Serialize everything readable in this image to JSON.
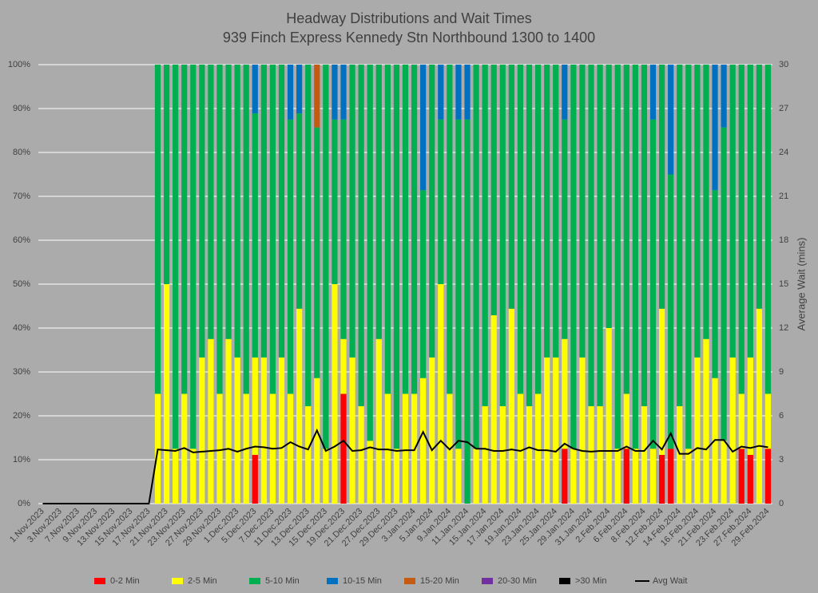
{
  "chart_data": {
    "type": "bar",
    "title": "Headway Distributions and Wait Times",
    "subtitle": "939 Finch Express  Kennedy Stn Northbound 1300 to 1400",
    "y2_label": "Average Wait (mins)",
    "stacked": true,
    "grid": true,
    "legend": "bottom",
    "categories": [
      "1.Nov.2023",
      null,
      "3.Nov.2023",
      null,
      "7.Nov.2023",
      null,
      "9.Nov.2023",
      null,
      "13.Nov.2023",
      null,
      "15.Nov.2023",
      null,
      "17.Nov.2023",
      null,
      "21.Nov.2023",
      null,
      "23.Nov.2023",
      null,
      "27.Nov.2023",
      null,
      "29.Nov.2023",
      null,
      "1.Dec.2023",
      null,
      "5.Dec.2023",
      null,
      "7.Dec.2023",
      null,
      "11.Dec.2023",
      null,
      "13.Dec.2023",
      null,
      "15.Dec.2023",
      null,
      "19.Dec.2023",
      null,
      "21.Dec.2023",
      null,
      "27.Dec.2023",
      null,
      "29.Dec.2023",
      null,
      "3.Jan.2024",
      null,
      "5.Jan.2024",
      null,
      "9.Jan.2024",
      null,
      "11.Jan.2024",
      null,
      "15.Jan.2024",
      null,
      "17.Jan.2024",
      null,
      "19.Jan.2024",
      null,
      "23.Jan.2024",
      null,
      "25.Jan.2024",
      null,
      "29.Jan.2024",
      null,
      "31.Jan.2024",
      null,
      "2.Feb.2024",
      null,
      "6.Feb.2024",
      null,
      "8.Feb.2024",
      null,
      "12.Feb.2024",
      null,
      "14.Feb.2024",
      null,
      "16.Feb.2024",
      null,
      "21.Feb.2024",
      null,
      "23.Feb.2024",
      null,
      "27.Feb.2024",
      null,
      "29.Feb.2024"
    ],
    "ylim": [
      0,
      100
    ],
    "yticks": [
      {
        "value": 0,
        "label": "0%"
      },
      {
        "value": 10,
        "label": "10%"
      },
      {
        "value": 20,
        "label": "20%"
      },
      {
        "value": 30,
        "label": "30%"
      },
      {
        "value": 40,
        "label": "40%"
      },
      {
        "value": 50,
        "label": "50%"
      },
      {
        "value": 60,
        "label": "60%"
      },
      {
        "value": 70,
        "label": "70%"
      },
      {
        "value": 80,
        "label": "80%"
      },
      {
        "value": 90,
        "label": "90%"
      },
      {
        "value": 100,
        "label": "100%"
      }
    ],
    "y2lim": [
      0,
      30
    ],
    "y2ticks": [
      0,
      3,
      6,
      9,
      12,
      15,
      18,
      21,
      24,
      27,
      30
    ],
    "series": [
      {
        "name": "0-2 Min",
        "color": "#ff0000",
        "values": [
          null,
          null,
          null,
          null,
          null,
          null,
          null,
          null,
          null,
          null,
          null,
          null,
          null,
          0,
          0,
          0,
          0,
          0,
          0,
          0,
          0,
          0,
          0,
          0,
          11.1,
          0,
          0,
          0,
          0,
          0,
          0,
          0,
          0,
          0,
          25,
          0,
          0,
          0,
          0,
          0,
          0,
          0,
          0,
          0,
          0,
          0,
          0,
          0,
          0,
          0,
          0,
          0,
          0,
          0,
          0,
          0,
          0,
          0,
          0,
          12.5,
          0,
          0,
          0,
          0,
          0,
          0,
          12.5,
          0,
          0,
          0,
          11.1,
          12.5,
          0,
          0,
          0,
          0,
          0,
          0,
          0,
          12.5,
          11.1,
          0,
          12.5
        ]
      },
      {
        "name": "2-5 Min",
        "color": "#ffff00",
        "values": [
          null,
          null,
          null,
          null,
          null,
          null,
          null,
          null,
          null,
          null,
          null,
          null,
          null,
          25,
          50,
          12.5,
          25,
          12.5,
          33.3,
          37.5,
          25,
          37.5,
          33.3,
          25,
          22.2,
          33.3,
          25,
          33.3,
          25,
          44.4,
          22.2,
          28.6,
          12.5,
          50,
          12.5,
          33.3,
          22.2,
          14.3,
          37.5,
          25,
          12.5,
          25,
          25,
          28.6,
          33.3,
          50,
          25,
          12.5,
          0,
          12.5,
          22.2,
          42.9,
          22.2,
          44.4,
          25,
          22.2,
          25,
          33.3,
          33.3,
          25,
          12.5,
          33.3,
          22.2,
          22.2,
          40,
          12.5,
          12.5,
          12.5,
          22.2,
          12.5,
          33.3,
          0,
          22.2,
          12.5,
          33.3,
          37.5,
          28.6,
          14.3,
          33.3,
          12.5,
          22.2,
          44.4,
          12.5
        ]
      },
      {
        "name": "5-10 Min",
        "color": "#00b050",
        "values": [
          null,
          null,
          null,
          null,
          null,
          null,
          null,
          null,
          null,
          null,
          null,
          null,
          null,
          75,
          50,
          87.5,
          75,
          87.5,
          66.7,
          62.5,
          75,
          62.5,
          66.7,
          75,
          55.6,
          66.7,
          75,
          66.7,
          62.5,
          44.5,
          77.8,
          57.1,
          87.5,
          37.5,
          50,
          66.7,
          77.8,
          85.7,
          62.5,
          75,
          87.5,
          75,
          75,
          42.8,
          66.7,
          37.5,
          75,
          75,
          87.5,
          87.5,
          77.8,
          57.1,
          77.8,
          55.6,
          75,
          77.8,
          75,
          66.7,
          66.7,
          50,
          87.5,
          66.7,
          77.8,
          77.8,
          60,
          87.5,
          75,
          87.5,
          77.8,
          75,
          55.6,
          62.5,
          77.8,
          87.5,
          66.7,
          62.5,
          42.8,
          71.4,
          66.7,
          75,
          66.7,
          55.6,
          75
        ]
      },
      {
        "name": "10-15 Min",
        "color": "#0070c0",
        "values": [
          null,
          null,
          null,
          null,
          null,
          null,
          null,
          null,
          null,
          null,
          null,
          null,
          null,
          0,
          0,
          0,
          0,
          0,
          0,
          0,
          0,
          0,
          0,
          0,
          11.1,
          0,
          0,
          0,
          12.5,
          11.1,
          0,
          0,
          0,
          12.5,
          12.5,
          0,
          0,
          0,
          0,
          0,
          0,
          0,
          0,
          28.6,
          0,
          12.5,
          0,
          12.5,
          12.5,
          0,
          0,
          0,
          0,
          0,
          0,
          0,
          0,
          0,
          0,
          12.5,
          0,
          0,
          0,
          0,
          0,
          0,
          0,
          0,
          0,
          12.5,
          0,
          25,
          0,
          0,
          0,
          0,
          28.6,
          14.3,
          0,
          0,
          0,
          0,
          0
        ]
      },
      {
        "name": "15-20 Min",
        "color": "#c55a11",
        "values": [
          null,
          null,
          null,
          null,
          null,
          null,
          null,
          null,
          null,
          null,
          null,
          null,
          null,
          0,
          0,
          0,
          0,
          0,
          0,
          0,
          0,
          0,
          0,
          0,
          0,
          0,
          0,
          0,
          0,
          0,
          0,
          14.3,
          0,
          0,
          0,
          0,
          0,
          0,
          0,
          0,
          0,
          0,
          0,
          0,
          0,
          0,
          0,
          0,
          0,
          0,
          0,
          0,
          0,
          0,
          0,
          0,
          0,
          0,
          0,
          0,
          0,
          0,
          0,
          0,
          0,
          0,
          0,
          0,
          0,
          0,
          0,
          0,
          0,
          0,
          0,
          0,
          0,
          0,
          0,
          0,
          0,
          0,
          0
        ]
      },
      {
        "name": "20-30 Min",
        "color": "#7030a0",
        "values": [
          null,
          null,
          null,
          null,
          null,
          null,
          null,
          null,
          null,
          null,
          null,
          null,
          null,
          0,
          0,
          0,
          0,
          0,
          0,
          0,
          0,
          0,
          0,
          0,
          0,
          0,
          0,
          0,
          0,
          0,
          0,
          0,
          0,
          0,
          0,
          0,
          0,
          0,
          0,
          0,
          0,
          0,
          0,
          0,
          0,
          0,
          0,
          0,
          0,
          0,
          0,
          0,
          0,
          0,
          0,
          0,
          0,
          0,
          0,
          0,
          0,
          0,
          0,
          0,
          0,
          0,
          0,
          0,
          0,
          0,
          0,
          0,
          0,
          0,
          0,
          0,
          0,
          0,
          0,
          0,
          0,
          0,
          0
        ]
      },
      {
        "name": ">30 Min",
        "color": "#000000",
        "values": [
          null,
          null,
          null,
          null,
          null,
          null,
          null,
          null,
          null,
          null,
          null,
          null,
          null,
          0,
          0,
          0,
          0,
          0,
          0,
          0,
          0,
          0,
          0,
          0,
          0,
          0,
          0,
          0,
          0,
          0,
          0,
          0,
          0,
          0,
          0,
          0,
          0,
          0,
          0,
          0,
          0,
          0,
          0,
          0,
          0,
          0,
          0,
          0,
          0,
          0,
          0,
          0,
          0,
          0,
          0,
          0,
          0,
          0,
          0,
          0,
          0,
          0,
          0,
          0,
          0,
          0,
          0,
          0,
          0,
          0,
          0,
          0,
          0,
          0,
          0,
          0,
          0,
          0,
          0,
          0,
          0,
          0,
          0
        ]
      },
      {
        "name": "Avg Wait",
        "color": "#000000",
        "type": "line",
        "axis": "y2",
        "values": [
          0,
          0,
          0,
          0,
          0,
          0,
          0,
          0,
          0,
          0,
          0,
          0,
          0,
          3.7,
          3.65,
          3.6,
          3.8,
          3.5,
          3.55,
          3.6,
          3.65,
          3.75,
          3.55,
          3.75,
          3.9,
          3.85,
          3.75,
          3.8,
          4.2,
          3.9,
          3.7,
          5.0,
          3.6,
          3.9,
          4.3,
          3.6,
          3.65,
          3.85,
          3.7,
          3.7,
          3.6,
          3.65,
          3.65,
          4.9,
          3.65,
          4.3,
          3.7,
          4.3,
          4.2,
          3.75,
          3.75,
          3.6,
          3.6,
          3.7,
          3.6,
          3.85,
          3.65,
          3.65,
          3.55,
          4.1,
          3.75,
          3.6,
          3.55,
          3.6,
          3.6,
          3.6,
          3.9,
          3.6,
          3.6,
          4.3,
          3.7,
          4.8,
          3.4,
          3.4,
          3.8,
          3.7,
          4.35,
          4.35,
          3.55,
          3.9,
          3.8,
          3.95,
          3.85
        ]
      }
    ]
  }
}
